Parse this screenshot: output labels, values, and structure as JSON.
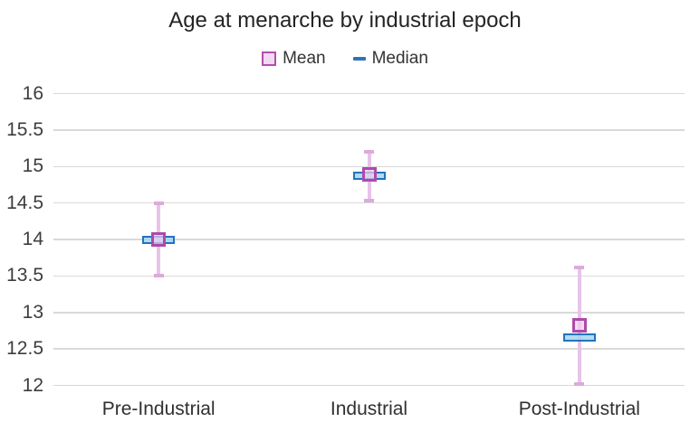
{
  "title": "Age at menarche by industrial epoch",
  "legend": {
    "items": [
      {
        "label": "Mean",
        "swatch": "square-icon",
        "color": "#b050ae",
        "fill": "#f2d9f1"
      },
      {
        "label": "Median",
        "swatch": "dash-icon",
        "color": "#2e75b6"
      }
    ]
  },
  "colors": {
    "error_bar_line": "#e7c4e8",
    "error_bar_cap": "#dcaadd",
    "mean_border": "#ad4aab",
    "mean_fill": "rgba(238,205,236,0.7)",
    "median_border": "#2273bd",
    "median_fill": "rgba(165,211,240,0.85)",
    "gridline": "#d9d9d9",
    "text": "#3d3d3d"
  },
  "chart_data": {
    "type": "scatter",
    "title": "Age at menarche by industrial epoch",
    "categories": [
      "Pre-Industrial",
      "Industrial",
      "Post-Industrial"
    ],
    "series": [
      {
        "name": "Mean",
        "marker": "square",
        "values": [
          14.0,
          14.89,
          12.82
        ]
      },
      {
        "name": "Median",
        "marker": "dash",
        "values": [
          14.0,
          14.87,
          12.66
        ]
      }
    ],
    "error_bars": {
      "attached_to": "Mean",
      "low": [
        13.5,
        14.53,
        12.02
      ],
      "high": [
        14.5,
        15.2,
        13.62
      ]
    },
    "xlabel": "",
    "ylabel": "",
    "ylim": [
      12,
      16
    ],
    "yticks": [
      12,
      12.5,
      13,
      13.5,
      14,
      14.5,
      15,
      15.5,
      16
    ],
    "ytick_labels": [
      "12",
      "12.5",
      "13",
      "13.5",
      "14",
      "14.5",
      "15",
      "15.5",
      "16"
    ],
    "grid": true,
    "legend_position": "top"
  }
}
